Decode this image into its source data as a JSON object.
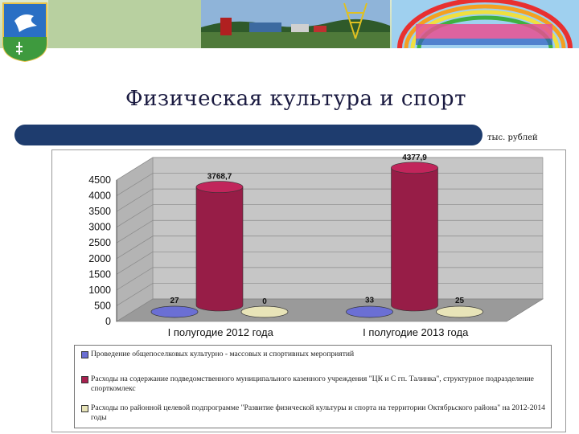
{
  "header": {
    "title": "Физическая культура и спорт",
    "unit": "тыс. рублей"
  },
  "chart_data": {
    "type": "bar",
    "categories": [
      "I полугодие 2012 года",
      "I полугодие 2013 года"
    ],
    "ylim": [
      0,
      4500
    ],
    "yticks": [
      "0",
      "500",
      "1000",
      "1500",
      "2000",
      "2500",
      "3000",
      "3500",
      "4000",
      "4500"
    ],
    "grid": true,
    "legend_position": "bottom",
    "series": [
      {
        "name": "Проведение общепоселковых культурно - массовых и спортивных мероприятий",
        "values": [
          27,
          33
        ],
        "labels": [
          "27",
          "33"
        ],
        "color": "#6b6fd4"
      },
      {
        "name": "Расходы на содержание подведомственного муниципального казенного учреждения \"ЦК и С гп. Талинка\", структурное подразделение спорткомлекс",
        "values": [
          3768.7,
          4377.9
        ],
        "labels": [
          "3768,7",
          "4377,9"
        ],
        "color": "#a8204f"
      },
      {
        "name": "Расходы по районной целевой подпрограмме \"Развитие физической культуры и спорта на территории Октябрьского района\" на 2012-2014 годы",
        "values": [
          0,
          25
        ],
        "labels": [
          "0",
          "25"
        ],
        "color": "#e8e4b8"
      }
    ]
  }
}
